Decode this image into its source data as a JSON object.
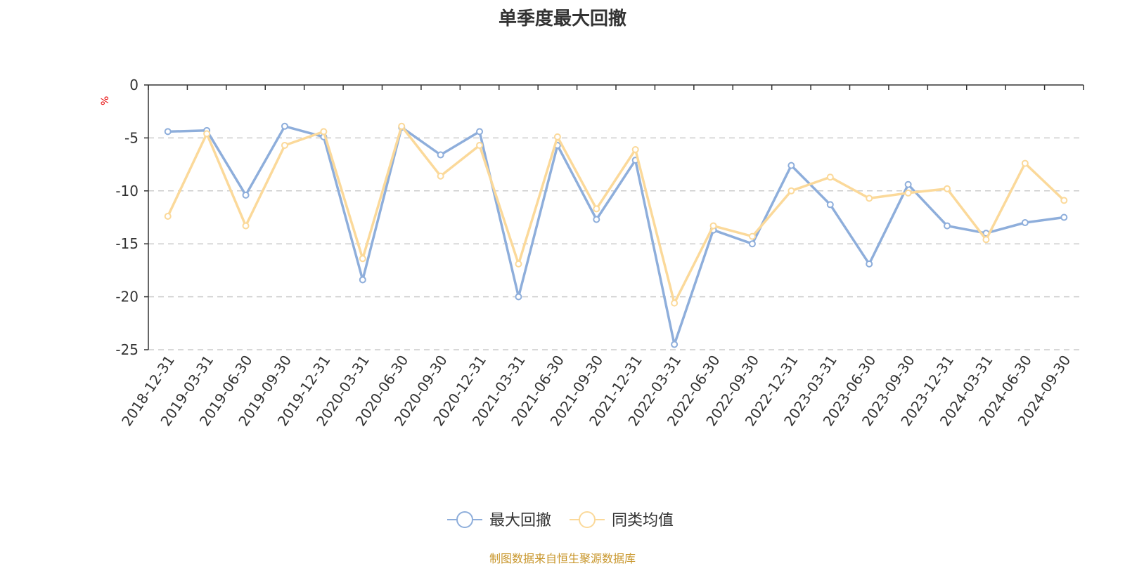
{
  "chart_data": {
    "type": "line",
    "title": "单季度最大回撤",
    "ylabel": "%",
    "xlabel": "",
    "ylim": [
      -25,
      0
    ],
    "yticks": [
      0,
      -5,
      -10,
      -15,
      -20,
      -25
    ],
    "grid": true,
    "legend_position": "bottom-center",
    "categories": [
      "2018-12-31",
      "2019-03-31",
      "2019-06-30",
      "2019-09-30",
      "2019-12-31",
      "2020-03-31",
      "2020-06-30",
      "2020-09-30",
      "2020-12-31",
      "2021-03-31",
      "2021-06-30",
      "2021-09-30",
      "2021-12-31",
      "2022-03-31",
      "2022-06-30",
      "2022-09-30",
      "2022-12-31",
      "2023-03-31",
      "2023-06-30",
      "2023-09-30",
      "2023-12-31",
      "2024-03-31",
      "2024-06-30",
      "2024-09-30"
    ],
    "series": [
      {
        "name": "最大回撤",
        "color": "#8eaedb",
        "values": [
          -4.4,
          -4.3,
          -10.4,
          -3.9,
          -4.9,
          -18.4,
          -4.0,
          -6.6,
          -4.4,
          -20.0,
          -5.7,
          -12.7,
          -7.1,
          -24.5,
          -13.7,
          -15.0,
          -7.6,
          -11.3,
          -16.9,
          -9.4,
          -13.3,
          -14.0,
          -13.0,
          -12.5
        ]
      },
      {
        "name": "同类均值",
        "color": "#fbd99a",
        "values": [
          -12.4,
          -4.6,
          -13.3,
          -5.7,
          -4.4,
          -16.4,
          -3.9,
          -8.6,
          -5.7,
          -16.9,
          -4.9,
          -11.7,
          -6.1,
          -20.6,
          -13.3,
          -14.3,
          -10.0,
          -8.7,
          -10.7,
          -10.2,
          -9.8,
          -14.6,
          -7.4,
          -10.9
        ]
      }
    ]
  },
  "footer": {
    "credit": "制图数据来自恒生聚源数据库"
  }
}
